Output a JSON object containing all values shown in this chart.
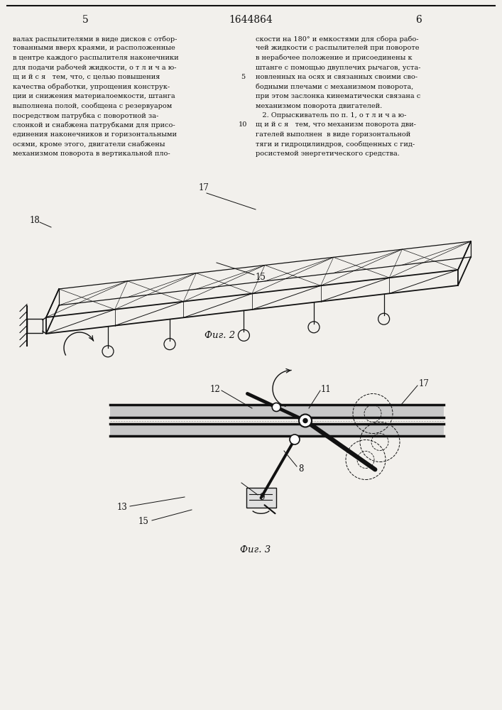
{
  "page_number_left": "5",
  "patent_number": "1644864",
  "page_number_right": "6",
  "background_color": "#f2f0ec",
  "text_color": "#111111",
  "line_color": "#111111",
  "fig2_caption": "Фиг. 2",
  "fig3_caption": "Фиг. 3"
}
